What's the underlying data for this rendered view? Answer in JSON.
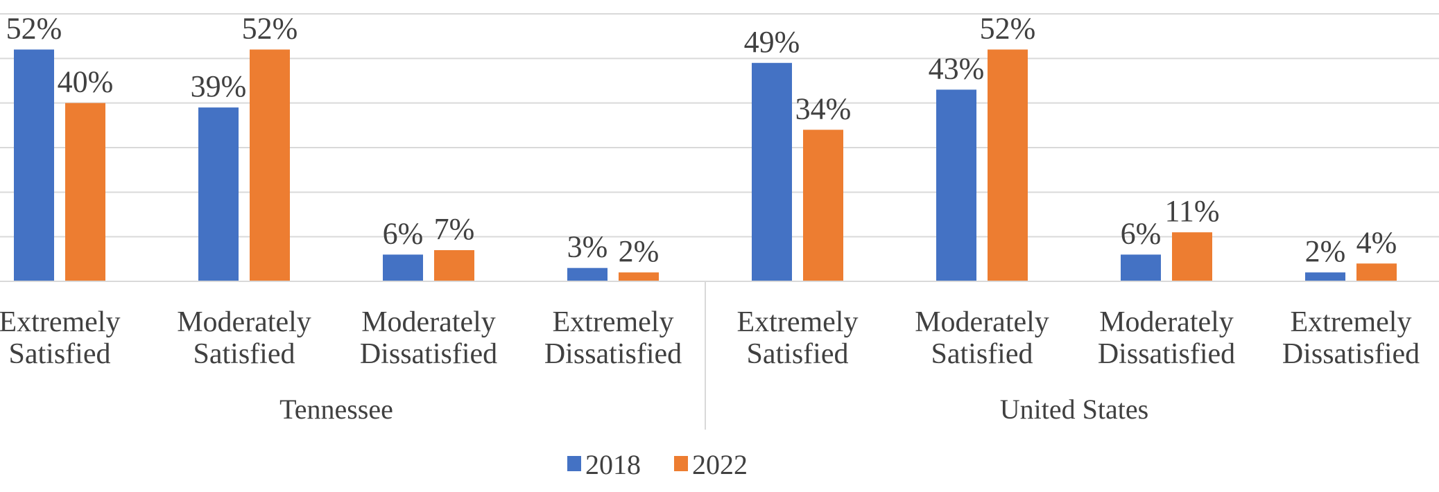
{
  "chart_data": {
    "type": "bar",
    "groups": [
      {
        "name": "Tennessee",
        "categories": [
          [
            "Extremely",
            "Satisfied"
          ],
          [
            "Moderately",
            "Satisfied"
          ],
          [
            "Moderately",
            "Dissatisfied"
          ],
          [
            "Extremely",
            "Dissatisfied"
          ]
        ]
      },
      {
        "name": "United States",
        "categories": [
          [
            "Extremely",
            "Satisfied"
          ],
          [
            "Moderately",
            "Satisfied"
          ],
          [
            "Moderately",
            "Dissatisfied"
          ],
          [
            "Extremely",
            "Dissatisfied"
          ]
        ]
      }
    ],
    "series": [
      {
        "name": "2018",
        "color": "#4472c4",
        "values": [
          52,
          39,
          6,
          3,
          49,
          43,
          6,
          2
        ],
        "labels": [
          "52%",
          "39%",
          "6%",
          "3%",
          "49%",
          "43%",
          "6%",
          "2%"
        ]
      },
      {
        "name": "2022",
        "color": "#ed7d31",
        "values": [
          40,
          52,
          7,
          2,
          34,
          52,
          11,
          4
        ],
        "labels": [
          "40%",
          "52%",
          "7%",
          "2%",
          "34%",
          "52%",
          "11%",
          "4%"
        ]
      }
    ],
    "ylim": [
      0,
      60
    ],
    "grid": true,
    "legend_position": "bottom"
  }
}
